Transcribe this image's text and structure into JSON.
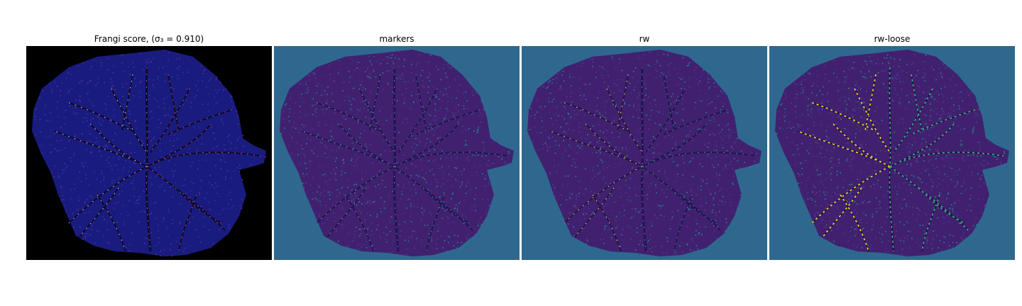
{
  "figure": {
    "panels": [
      {
        "id": "frangi",
        "title": "Frangi score, (σ₃ = 0.910)",
        "background": "#000000",
        "body": "#191c7e",
        "dots": [
          "#3a2fa3",
          "#5b2fa8",
          "#1d1f6e"
        ],
        "veins": [
          "#0a0a30",
          "#d24f86",
          "#f1a6c0"
        ]
      },
      {
        "id": "markers",
        "title": "markers",
        "background": "#2f688f",
        "body": "#41216f",
        "dots": [
          "#3b3b8f",
          "#5a3d8c",
          "#21898b"
        ],
        "veins": [
          "#2a0f55",
          "#25a08a",
          "#3fbf9a"
        ]
      },
      {
        "id": "rw",
        "title": "rw",
        "background": "#2f688f",
        "body": "#41216f",
        "dots": [
          "#3b3b8f",
          "#5a3d8c",
          "#21898b"
        ],
        "veins": [
          "#2a0f55",
          "#25a08a",
          "#cfe43a"
        ]
      },
      {
        "id": "rw-loose",
        "title": "rw-loose",
        "background": "#2f688f",
        "body": "#41216f",
        "dots": [
          "#3b3b8f",
          "#5a3d8c",
          "#21898b"
        ],
        "veins": [
          "#2a0f55",
          "#3aba77",
          "#f2e61d"
        ]
      }
    ]
  }
}
